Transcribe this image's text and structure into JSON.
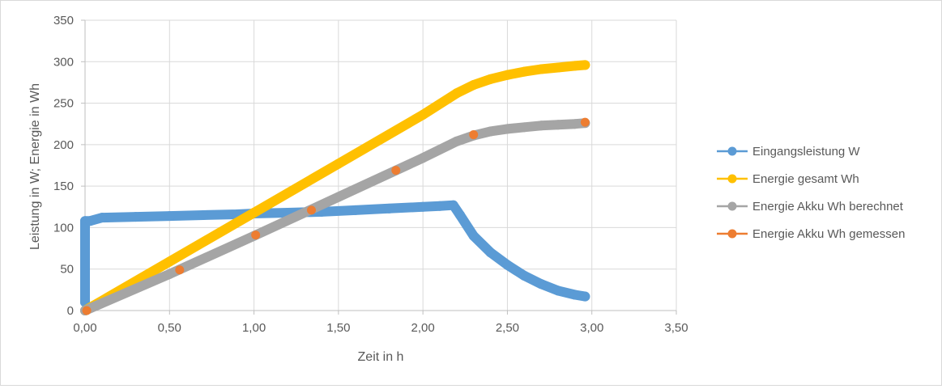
{
  "chart_data": {
    "type": "scatter",
    "title": "",
    "xlabel": "Zeit in h",
    "ylabel": "Leistung in W; Energie in Wh",
    "xlim": [
      0,
      3.5
    ],
    "ylim": [
      0,
      350
    ],
    "x_ticks": [
      "0,00",
      "0,50",
      "1,00",
      "1,50",
      "2,00",
      "2,50",
      "3,00",
      "3,50"
    ],
    "y_ticks": [
      "0",
      "50",
      "100",
      "150",
      "200",
      "250",
      "300",
      "350"
    ],
    "grid": true,
    "legend_position": "right",
    "series": [
      {
        "name": "Eingangsleistung W",
        "color": "#5b9bd5",
        "style": "dense-markers",
        "points": [
          [
            0,
            10
          ],
          [
            0,
            108
          ],
          [
            0.03,
            108
          ],
          [
            0.1,
            112
          ],
          [
            0.3,
            113
          ],
          [
            0.5,
            114
          ],
          [
            0.7,
            115
          ],
          [
            0.9,
            116
          ],
          [
            1.0,
            117
          ],
          [
            1.2,
            118
          ],
          [
            1.4,
            119
          ],
          [
            1.6,
            121
          ],
          [
            1.8,
            123
          ],
          [
            2.0,
            125
          ],
          [
            2.1,
            126
          ],
          [
            2.18,
            127
          ],
          [
            2.22,
            115
          ],
          [
            2.3,
            90
          ],
          [
            2.4,
            70
          ],
          [
            2.5,
            55
          ],
          [
            2.6,
            42
          ],
          [
            2.7,
            32
          ],
          [
            2.8,
            24
          ],
          [
            2.9,
            19
          ],
          [
            2.96,
            17
          ]
        ]
      },
      {
        "name": "Energie gesamt Wh",
        "color": "#ffc000",
        "style": "dense-markers",
        "points": [
          [
            0,
            0
          ],
          [
            0.5,
            59
          ],
          [
            1.0,
            118
          ],
          [
            1.5,
            177
          ],
          [
            2.0,
            236
          ],
          [
            2.2,
            262
          ],
          [
            2.3,
            272
          ],
          [
            2.4,
            279
          ],
          [
            2.5,
            284
          ],
          [
            2.6,
            288
          ],
          [
            2.7,
            291
          ],
          [
            2.8,
            293
          ],
          [
            2.9,
            295
          ],
          [
            2.96,
            296
          ]
        ]
      },
      {
        "name": "Energie Akku Wh berechnet",
        "color": "#a5a5a5",
        "style": "dense-markers",
        "points": [
          [
            0,
            0
          ],
          [
            0.5,
            44
          ],
          [
            1.0,
            90
          ],
          [
            1.5,
            137
          ],
          [
            2.0,
            184
          ],
          [
            2.2,
            204
          ],
          [
            2.3,
            211
          ],
          [
            2.4,
            216
          ],
          [
            2.5,
            219
          ],
          [
            2.6,
            221
          ],
          [
            2.7,
            223
          ],
          [
            2.8,
            224
          ],
          [
            2.9,
            225
          ],
          [
            2.96,
            226
          ]
        ]
      },
      {
        "name": "Energie Akku Wh gemessen",
        "color": "#ed7d31",
        "style": "markers",
        "points": [
          [
            0.01,
            0
          ],
          [
            0.56,
            49
          ],
          [
            1.01,
            91
          ],
          [
            1.34,
            121
          ],
          [
            1.84,
            169
          ],
          [
            2.3,
            212
          ],
          [
            2.96,
            227
          ]
        ]
      }
    ]
  }
}
